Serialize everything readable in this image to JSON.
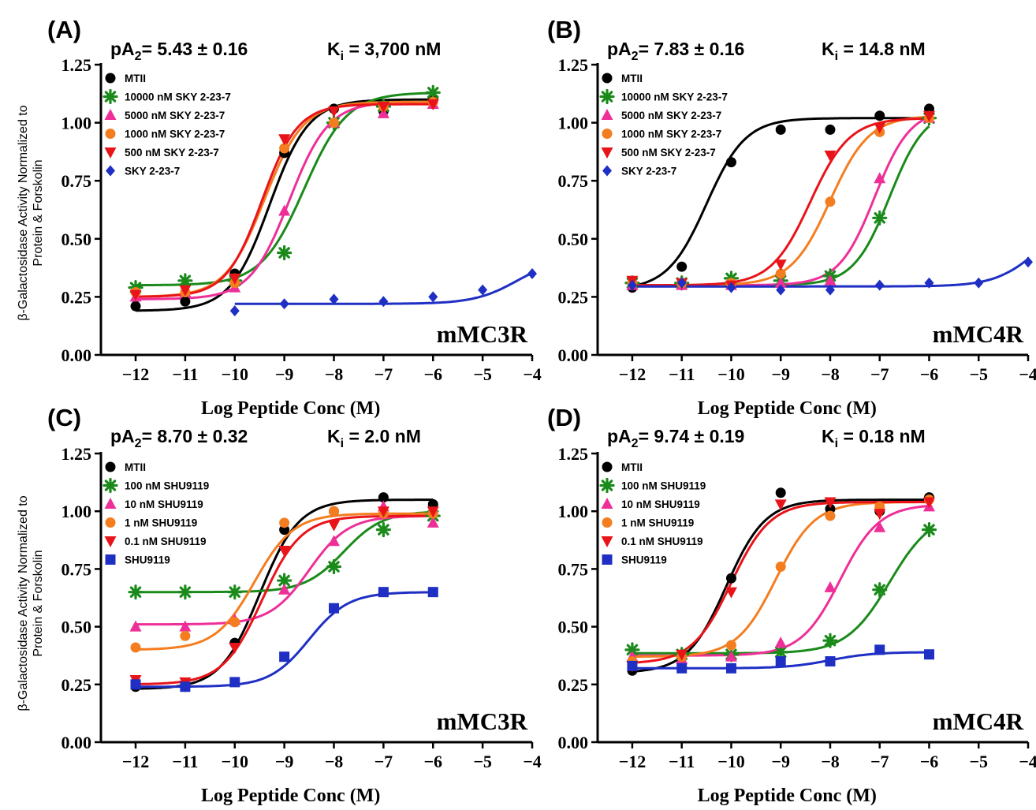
{
  "colors": {
    "black": "#000000",
    "green": "#1a8a1a",
    "magenta": "#ee2f98",
    "orange": "#f47d20",
    "red": "#e8141a",
    "blue": "#1f2fc4"
  },
  "y_axis_title_line1": "β-Galactosidase Activity Normalized to",
  "y_axis_title_line2": "Protein & Forskolin",
  "chart_data": [
    {
      "type": "scatter",
      "panel": "(A)",
      "pa2_label": "pA",
      "pa2_sub": "2",
      "pa2_value": "= 5.43 ± 0.16",
      "ki_label": "K",
      "ki_sub": "i",
      "ki_value": " = 3,700 nM",
      "receptor": "mMC3R",
      "xlabel": "Log Peptide Conc (M)",
      "xlim": [
        -12.7,
        -4
      ],
      "ylim": [
        0,
        1.25
      ],
      "xticks": [
        "-12",
        "-11",
        "-10",
        "-9",
        "-8",
        "-7",
        "-6",
        "-5",
        "-4"
      ],
      "yticks": [
        "0.00",
        "0.25",
        "0.50",
        "0.75",
        "1.00",
        "1.25"
      ],
      "series": [
        {
          "name": "MTII",
          "marker": "circle",
          "color": "#000000",
          "x": [
            -12,
            -11,
            -10,
            -9,
            -8,
            -7,
            -6
          ],
          "y": [
            0.21,
            0.23,
            0.35,
            0.87,
            1.06,
            1.05,
            1.1
          ],
          "fit": {
            "bottom": 0.19,
            "top": 1.1,
            "ec50": -9.3,
            "hill": 1.1,
            "xmin": -12,
            "xmax": -6
          }
        },
        {
          "name": "10000 nM SKY 2-23-7",
          "marker": "star",
          "color": "#1a8a1a",
          "x": [
            -12,
            -11,
            -10,
            -9,
            -8,
            -7,
            -6
          ],
          "y": [
            0.29,
            0.32,
            0.32,
            0.44,
            1.0,
            1.07,
            1.13
          ],
          "fit": {
            "bottom": 0.3,
            "top": 1.13,
            "ec50": -8.6,
            "hill": 1.0,
            "xmin": -12,
            "xmax": -6
          }
        },
        {
          "name": "5000 nM SKY 2-23-7",
          "marker": "triangle-up",
          "color": "#ee2f98",
          "x": [
            -12,
            -11,
            -10,
            -9,
            -8,
            -7,
            -6
          ],
          "y": [
            0.25,
            0.27,
            0.29,
            0.62,
            1.0,
            1.04,
            1.08
          ],
          "fit": {
            "bottom": 0.24,
            "top": 1.09,
            "ec50": -8.9,
            "hill": 1.1,
            "xmin": -12,
            "xmax": -6
          }
        },
        {
          "name": "1000 nM SKY 2-23-7",
          "marker": "circle",
          "color": "#f47d20",
          "x": [
            -12,
            -11,
            -10,
            -9,
            -8,
            -7,
            -6
          ],
          "y": [
            0.27,
            0.27,
            0.31,
            0.89,
            1.0,
            1.07,
            1.09
          ],
          "fit": {
            "bottom": 0.25,
            "top": 1.09,
            "ec50": -9.4,
            "hill": 1.1,
            "xmin": -12,
            "xmax": -6
          }
        },
        {
          "name": "500 nM SKY 2-23-7",
          "marker": "triangle-down",
          "color": "#e8141a",
          "x": [
            -12,
            -11,
            -10,
            -9,
            -8,
            -7,
            -6
          ],
          "y": [
            0.26,
            0.28,
            0.33,
            0.93,
            1.05,
            1.07,
            1.08
          ],
          "fit": {
            "bottom": 0.25,
            "top": 1.08,
            "ec50": -9.45,
            "hill": 1.2,
            "xmin": -12,
            "xmax": -6
          }
        },
        {
          "name": "SKY 2-23-7",
          "marker": "diamond",
          "color": "#1f2fc4",
          "x": [
            -10,
            -9,
            -8,
            -7,
            -6,
            -5,
            -4
          ],
          "y": [
            0.19,
            0.22,
            0.24,
            0.23,
            0.25,
            0.28,
            0.35
          ],
          "fit": {
            "bottom": 0.22,
            "top": 0.42,
            "ec50": -4.3,
            "hill": 1.0,
            "xmin": -10,
            "xmax": -4
          }
        }
      ]
    },
    {
      "type": "scatter",
      "panel": "(B)",
      "pa2_label": "pA",
      "pa2_sub": "2",
      "pa2_value": "= 7.83 ± 0.16",
      "ki_label": "K",
      "ki_sub": "i",
      "ki_value": " = 14.8 nM",
      "receptor": "mMC4R",
      "xlabel": "Log Peptide Conc (M)",
      "xlim": [
        -12.7,
        -4
      ],
      "ylim": [
        0,
        1.25
      ],
      "xticks": [
        "-12",
        "-11",
        "-10",
        "-9",
        "-8",
        "-7",
        "-6",
        "-5",
        "-4"
      ],
      "yticks": [
        "0.00",
        "0.25",
        "0.50",
        "0.75",
        "1.00",
        "1.25"
      ],
      "series": [
        {
          "name": "MTII",
          "marker": "circle",
          "color": "#000000",
          "x": [
            -12,
            -11,
            -10,
            -9,
            -8,
            -7,
            -6
          ],
          "y": [
            0.29,
            0.38,
            0.83,
            0.97,
            0.97,
            1.03,
            1.06
          ],
          "fit": {
            "bottom": 0.28,
            "top": 1.02,
            "ec50": -10.5,
            "hill": 1.1,
            "xmin": -12,
            "xmax": -6
          }
        },
        {
          "name": "10000 nM SKY 2-23-7",
          "marker": "star",
          "color": "#1a8a1a",
          "x": [
            -12,
            -11,
            -10,
            -9,
            -8,
            -7,
            -6
          ],
          "y": [
            0.31,
            0.31,
            0.33,
            0.32,
            0.34,
            0.59,
            1.02
          ],
          "fit": {
            "bottom": 0.3,
            "top": 1.06,
            "ec50": -6.8,
            "hill": 1.2,
            "xmin": -12,
            "xmax": -6
          }
        },
        {
          "name": "5000 nM SKY 2-23-7",
          "marker": "triangle-up",
          "color": "#ee2f98",
          "x": [
            -12,
            -11,
            -10,
            -9,
            -8,
            -7,
            -6
          ],
          "y": [
            0.3,
            0.3,
            0.3,
            0.31,
            0.32,
            0.76,
            1.02
          ],
          "fit": {
            "bottom": 0.3,
            "top": 1.06,
            "ec50": -7.1,
            "hill": 1.2,
            "xmin": -12,
            "xmax": -6
          }
        },
        {
          "name": "1000 nM SKY 2-23-7",
          "marker": "circle",
          "color": "#f47d20",
          "x": [
            -12,
            -11,
            -10,
            -9,
            -8,
            -7,
            -6
          ],
          "y": [
            0.31,
            0.31,
            0.31,
            0.35,
            0.66,
            0.96,
            1.02
          ],
          "fit": {
            "bottom": 0.3,
            "top": 1.03,
            "ec50": -8.0,
            "hill": 1.1,
            "xmin": -12,
            "xmax": -6
          }
        },
        {
          "name": "500 nM SKY 2-23-7",
          "marker": "triangle-down",
          "color": "#e8141a",
          "x": [
            -12,
            -11,
            -10,
            -9,
            -8,
            -7,
            -6
          ],
          "y": [
            0.32,
            0.31,
            0.3,
            0.39,
            0.86,
            0.98,
            1.03
          ],
          "fit": {
            "bottom": 0.3,
            "top": 1.02,
            "ec50": -8.4,
            "hill": 1.1,
            "xmin": -12,
            "xmax": -6
          }
        },
        {
          "name": "SKY 2-23-7",
          "marker": "diamond",
          "color": "#1f2fc4",
          "x": [
            -12,
            -11,
            -10,
            -9,
            -8,
            -7,
            -6,
            -5,
            -4
          ],
          "y": [
            0.3,
            0.31,
            0.29,
            0.28,
            0.28,
            0.3,
            0.31,
            0.31,
            0.4
          ],
          "fit": {
            "bottom": 0.295,
            "top": 0.6,
            "ec50": -3.8,
            "hill": 1.0,
            "xmin": -12,
            "xmax": -4
          }
        }
      ]
    },
    {
      "type": "scatter",
      "panel": "(C)",
      "pa2_label": "pA",
      "pa2_sub": "2",
      "pa2_value": "= 8.70 ± 0.32",
      "ki_label": "K",
      "ki_sub": "i",
      "ki_value": " = 2.0 nM",
      "receptor": "mMC3R",
      "xlabel": "Log Peptide Conc (M)",
      "xlim": [
        -12.7,
        -4
      ],
      "ylim": [
        0,
        1.25
      ],
      "xticks": [
        "-12",
        "-11",
        "-10",
        "-9",
        "-8",
        "-7",
        "-6",
        "-5",
        "-4"
      ],
      "yticks": [
        "0.00",
        "0.25",
        "0.50",
        "0.75",
        "1.00",
        "1.25"
      ],
      "series": [
        {
          "name": "MTII",
          "marker": "circle",
          "color": "#000000",
          "x": [
            -12,
            -11,
            -10,
            -9,
            -8,
            -7,
            -6
          ],
          "y": [
            0.24,
            0.24,
            0.43,
            0.92,
            1.0,
            1.06,
            1.03
          ],
          "fit": {
            "bottom": 0.23,
            "top": 1.05,
            "ec50": -9.5,
            "hill": 1.1,
            "xmin": -12,
            "xmax": -6
          }
        },
        {
          "name": "100 nM SHU9119",
          "marker": "star",
          "color": "#1a8a1a",
          "x": [
            -12,
            -11,
            -10,
            -9,
            -8,
            -7,
            -6
          ],
          "y": [
            0.65,
            0.65,
            0.65,
            0.7,
            0.76,
            0.92,
            0.98
          ],
          "fit": {
            "bottom": 0.65,
            "top": 1.0,
            "ec50": -7.8,
            "hill": 1.1,
            "xmin": -12,
            "xmax": -6
          }
        },
        {
          "name": "10 nM SHU9119",
          "marker": "triangle-up",
          "color": "#ee2f98",
          "x": [
            -12,
            -11,
            -10,
            -9,
            -8,
            -7,
            -6
          ],
          "y": [
            0.5,
            0.5,
            0.53,
            0.66,
            0.87,
            1.02,
            0.95
          ],
          "fit": {
            "bottom": 0.51,
            "top": 0.98,
            "ec50": -8.5,
            "hill": 1.1,
            "xmin": -12,
            "xmax": -6
          }
        },
        {
          "name": "1 nM SHU9119",
          "marker": "circle",
          "color": "#f47d20",
          "x": [
            -12,
            -11,
            -10,
            -9,
            -8,
            -7,
            -6
          ],
          "y": [
            0.41,
            0.46,
            0.52,
            0.95,
            1.0,
            0.99,
            0.99
          ],
          "fit": {
            "bottom": 0.4,
            "top": 0.99,
            "ec50": -9.6,
            "hill": 1.1,
            "xmin": -12,
            "xmax": -6
          }
        },
        {
          "name": "0.1 nM SHU9119",
          "marker": "triangle-down",
          "color": "#e8141a",
          "x": [
            -12,
            -11,
            -10,
            -9,
            -8,
            -7,
            -6
          ],
          "y": [
            0.27,
            0.26,
            0.41,
            0.83,
            0.94,
            1.0,
            1.0
          ],
          "fit": {
            "bottom": 0.25,
            "top": 0.98,
            "ec50": -9.45,
            "hill": 1.1,
            "xmin": -12,
            "xmax": -6
          }
        },
        {
          "name": "SHU9119",
          "marker": "square",
          "color": "#1f2fc4",
          "x": [
            -12,
            -11,
            -10,
            -9,
            -8,
            -7,
            -6
          ],
          "y": [
            0.25,
            0.24,
            0.26,
            0.37,
            0.58,
            0.65,
            0.65
          ],
          "fit": {
            "bottom": 0.24,
            "top": 0.65,
            "ec50": -8.5,
            "hill": 1.1,
            "xmin": -12,
            "xmax": -6
          }
        }
      ]
    },
    {
      "type": "scatter",
      "panel": "(D)",
      "pa2_label": "pA",
      "pa2_sub": "2",
      "pa2_value": "= 9.74 ± 0.19",
      "ki_label": "K",
      "ki_sub": "i",
      "ki_value": " = 0.18 nM",
      "receptor": "mMC4R",
      "xlabel": "Log Peptide Conc (M)",
      "xlim": [
        -12.7,
        -4
      ],
      "ylim": [
        0,
        1.25
      ],
      "xticks": [
        "-12",
        "-11",
        "-10",
        "-9",
        "-8",
        "-7",
        "-6",
        "-5",
        "-4"
      ],
      "yticks": [
        "0.00",
        "0.25",
        "0.50",
        "0.75",
        "1.00",
        "1.25"
      ],
      "series": [
        {
          "name": "MTII",
          "marker": "circle",
          "color": "#000000",
          "x": [
            -12,
            -11,
            -10,
            -9,
            -8,
            -7,
            -6
          ],
          "y": [
            0.31,
            0.37,
            0.71,
            1.08,
            1.01,
            1.0,
            1.06
          ],
          "fit": {
            "bottom": 0.3,
            "top": 1.05,
            "ec50": -10.1,
            "hill": 1.1,
            "xmin": -12,
            "xmax": -6
          }
        },
        {
          "name": "100 nM SHU9119",
          "marker": "star",
          "color": "#1a8a1a",
          "x": [
            -12,
            -11,
            -10,
            -9,
            -8,
            -7,
            -6
          ],
          "y": [
            0.4,
            0.38,
            0.38,
            0.39,
            0.44,
            0.66,
            0.92
          ],
          "fit": {
            "bottom": 0.385,
            "top": 1.0,
            "ec50": -6.8,
            "hill": 1.0,
            "xmin": -12,
            "xmax": -6
          }
        },
        {
          "name": "10 nM SHU9119",
          "marker": "triangle-up",
          "color": "#ee2f98",
          "x": [
            -12,
            -11,
            -10,
            -9,
            -8,
            -7,
            -6
          ],
          "y": [
            0.37,
            0.36,
            0.37,
            0.43,
            0.67,
            0.93,
            1.02
          ],
          "fit": {
            "bottom": 0.375,
            "top": 1.03,
            "ec50": -7.8,
            "hill": 1.1,
            "xmin": -12,
            "xmax": -6
          }
        },
        {
          "name": "1 nM SHU9119",
          "marker": "circle",
          "color": "#f47d20",
          "x": [
            -12,
            -11,
            -10,
            -9,
            -8,
            -7,
            -6
          ],
          "y": [
            0.35,
            0.37,
            0.42,
            0.76,
            0.98,
            1.02,
            1.05
          ],
          "fit": {
            "bottom": 0.37,
            "top": 1.04,
            "ec50": -9.1,
            "hill": 1.1,
            "xmin": -12,
            "xmax": -6
          }
        },
        {
          "name": "0.1 nM SHU9119",
          "marker": "triangle-down",
          "color": "#e8141a",
          "x": [
            -12,
            -11,
            -10,
            -9,
            -8,
            -7,
            -6
          ],
          "y": [
            0.33,
            0.38,
            0.65,
            1.03,
            1.04,
            0.99,
            1.04
          ],
          "fit": {
            "bottom": 0.34,
            "top": 1.04,
            "ec50": -10.0,
            "hill": 1.1,
            "xmin": -12,
            "xmax": -6
          }
        },
        {
          "name": "SHU9119",
          "marker": "square",
          "color": "#1f2fc4",
          "x": [
            -12,
            -11,
            -10,
            -9,
            -8,
            -7,
            -6
          ],
          "y": [
            0.33,
            0.32,
            0.32,
            0.35,
            0.35,
            0.4,
            0.38
          ],
          "fit": {
            "bottom": 0.32,
            "top": 0.39,
            "ec50": -8.0,
            "hill": 1.0,
            "xmin": -12,
            "xmax": -6
          }
        }
      ]
    }
  ]
}
